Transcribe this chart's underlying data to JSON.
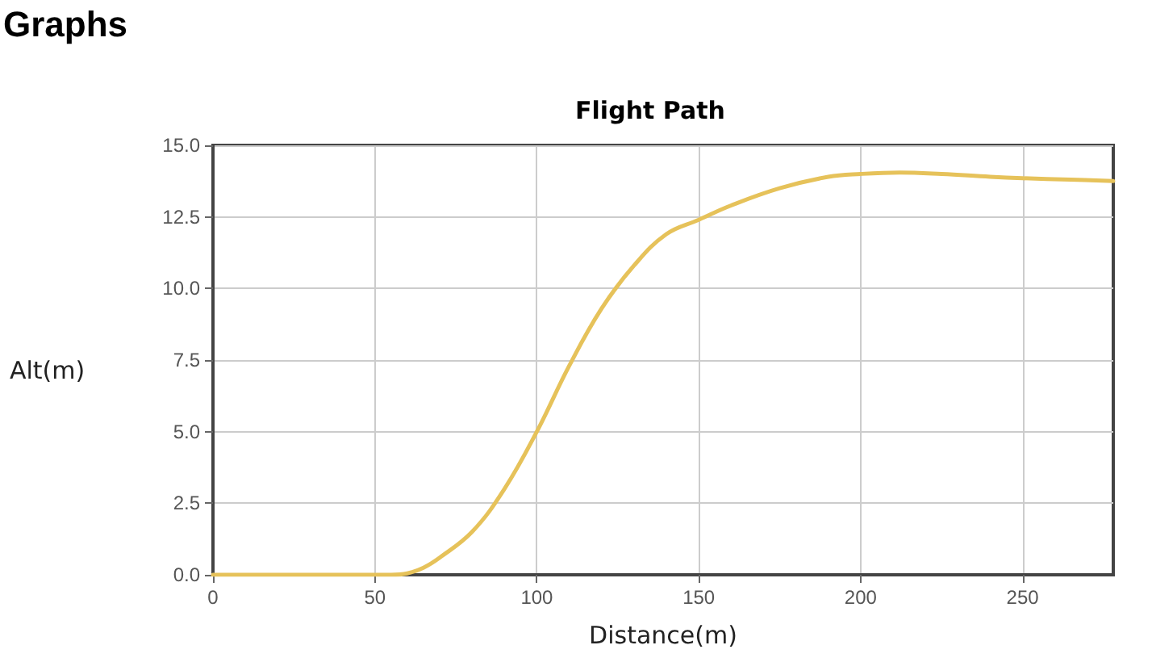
{
  "chart_data": {
    "type": "line",
    "title": "Flight Path",
    "xlabel": "Distance(m)",
    "ylabel": "Alt(m)",
    "annotations": [
      "Graphs"
    ],
    "x": [
      0,
      20,
      40,
      50,
      55,
      60,
      65,
      70,
      80,
      90,
      100,
      110,
      120,
      130,
      140,
      150,
      160,
      175,
      190,
      200,
      212,
      225,
      240,
      250,
      265,
      278
    ],
    "series": [
      {
        "color": "#e6c25a",
        "values": [
          0,
          0,
          0,
          0,
          0,
          0.05,
          0.25,
          0.6,
          1.5,
          3.0,
          5.0,
          7.3,
          9.3,
          10.8,
          11.9,
          12.4,
          12.9,
          13.5,
          13.9,
          14.0,
          14.05,
          14.0,
          13.9,
          13.85,
          13.8,
          13.75
        ]
      }
    ],
    "xlim": [
      0,
      278
    ],
    "xticks": [
      0,
      50,
      100,
      150,
      200,
      250
    ],
    "ylim": [
      0,
      15
    ],
    "yticks": [
      {
        "value": 0,
        "label": "0.0"
      },
      {
        "value": 2.5,
        "label": "2.5"
      },
      {
        "value": 5,
        "label": "5.0"
      },
      {
        "value": 7.5,
        "label": "7.5"
      },
      {
        "value": 10,
        "label": "10.0"
      },
      {
        "value": 12.5,
        "label": "12.5"
      },
      {
        "value": 15,
        "label": "15.0"
      }
    ],
    "grid": true,
    "marker": "none",
    "line_style": "solid"
  }
}
